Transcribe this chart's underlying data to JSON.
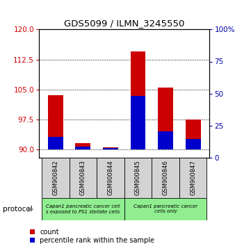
{
  "title": "GDS5099 / ILMN_3245550",
  "samples": [
    "GSM900842",
    "GSM900843",
    "GSM900844",
    "GSM900845",
    "GSM900846",
    "GSM900847"
  ],
  "count_values": [
    103.5,
    91.5,
    90.5,
    114.5,
    105.5,
    97.5
  ],
  "percentile_values": [
    10,
    2,
    1,
    42,
    14,
    8
  ],
  "ylim_left": [
    88,
    120
  ],
  "yticks_left": [
    90,
    97.5,
    105,
    112.5,
    120
  ],
  "ylim_right": [
    0,
    100
  ],
  "yticks_right": [
    0,
    25,
    50,
    75,
    100
  ],
  "bar_bottom": 90,
  "count_color": "#CC0000",
  "percentile_color": "#0000CC",
  "group1_label": "Capan1 pancreatic cancer cell\ns exposed to PS1 stellate cells",
  "group2_label": "Capan1 pancreatic cancer\ncells only",
  "group1_color": "#90EE90",
  "group2_color": "#90EE90",
  "group1_samples": [
    0,
    1,
    2
  ],
  "group2_samples": [
    3,
    4,
    5
  ],
  "tick_area_color": "#D3D3D3",
  "ylabel_left_color": "#CC0000",
  "ylabel_right_color": "#0000AA",
  "bar_width": 0.55
}
